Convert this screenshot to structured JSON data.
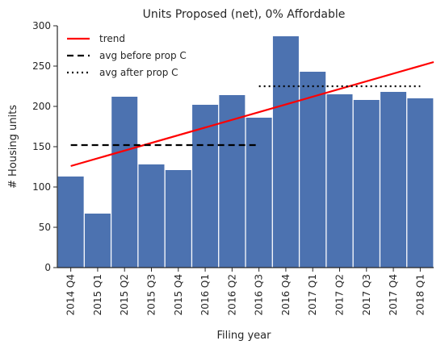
{
  "chart_data": {
    "type": "bar",
    "title": "Units Proposed (net), 0% Affordable",
    "xlabel": "Filing year",
    "ylabel": "# Housing units",
    "categories": [
      "2014 Q4",
      "2015 Q1",
      "2015 Q2",
      "2015 Q3",
      "2015 Q4",
      "2016 Q1",
      "2016 Q2",
      "2016 Q3",
      "2016 Q4",
      "2017 Q1",
      "2017 Q2",
      "2017 Q3",
      "2017 Q4",
      "2018 Q1"
    ],
    "values": [
      113,
      67,
      212,
      128,
      121,
      202,
      214,
      186,
      287,
      243,
      215,
      208,
      218,
      210
    ],
    "ylim": [
      0,
      300
    ],
    "yticks": [
      0,
      50,
      100,
      150,
      200,
      250,
      300
    ],
    "bar_color": "#4c72b0",
    "grid": false,
    "legend_position": "top-left",
    "lines": [
      {
        "name": "trend",
        "style": "solid",
        "color": "#ff0000",
        "x_start": "2014 Q4",
        "x_end": "2018 Q1",
        "y_start": 126,
        "y_end": 255
      },
      {
        "name": "avg before prop C",
        "style": "dashed",
        "color": "#000000",
        "x_start": "2014 Q4",
        "x_end": "2016 Q3",
        "y": 152
      },
      {
        "name": "avg after prop C",
        "style": "dotted",
        "color": "#000000",
        "x_start": "2016 Q3",
        "x_end": "2018 Q1",
        "y": 225
      }
    ]
  }
}
